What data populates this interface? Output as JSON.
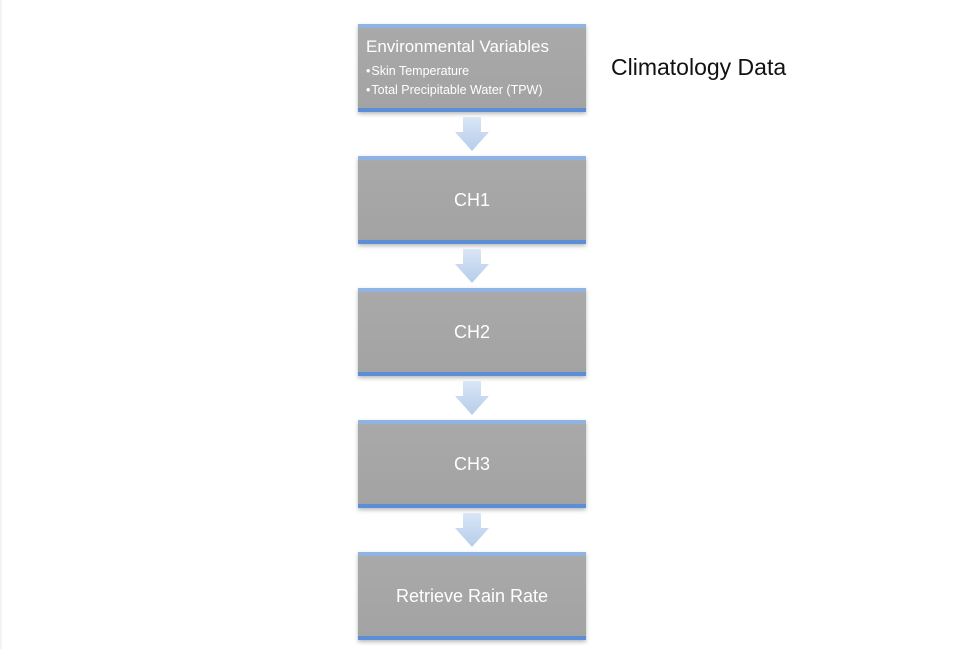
{
  "diagram": {
    "side_label": "Climatology Data",
    "steps": [
      {
        "title": "Environmental Variables",
        "bullets": [
          "Skin Temperature",
          "Total Precipitable Water (TPW)"
        ]
      },
      {
        "title": "CH1"
      },
      {
        "title": "CH2"
      },
      {
        "title": "CH3"
      },
      {
        "title": "Retrieve Rain Rate"
      }
    ],
    "bullet_glyph": "•",
    "colors": {
      "box_fill": "#a6a6a6",
      "box_top_border": "#8fb4e3",
      "box_bottom_border": "#5a8fd6",
      "arrow_fill": "#c6d9f1",
      "text_on_box": "#ffffff",
      "side_label": "#111111"
    },
    "icons": {
      "connector": "down-arrow-icon"
    }
  }
}
